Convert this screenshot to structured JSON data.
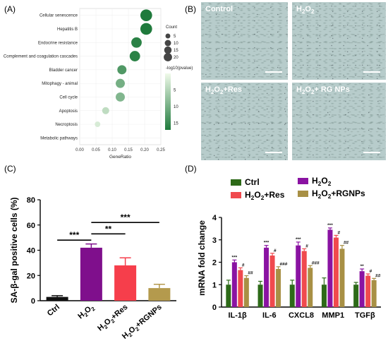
{
  "panels": {
    "a": "(A)",
    "b": "(B)",
    "c": "(C)",
    "d": "(D)"
  },
  "micrographs": [
    {
      "label": "Control"
    },
    {
      "label": "H",
      "sub": "2",
      "tail": "O",
      "sub2": "2",
      "rest": ""
    },
    {
      "label": "H",
      "sub": "2",
      "tail": "O",
      "sub2": "2",
      "rest": "+Res"
    },
    {
      "label": "H",
      "sub": "2",
      "tail": "O",
      "sub2": "2",
      "rest": "+ RG NPs"
    }
  ],
  "chart_data": [
    {
      "type": "scatter",
      "panel": "A",
      "xlabel": "GeneRatio",
      "xlim": [
        0.0,
        0.25
      ],
      "xticks": [
        "0.00",
        "0.05",
        "0.10",
        "0.15",
        "0.20",
        "0.25"
      ],
      "categories": [
        "Cellular senescence",
        "Hepatitis B",
        "Endocrine resistance",
        "Complement and coagulation cascades",
        "Bladder cancer",
        "Mitophagy - animal",
        "Cell cycle",
        "Apoptosis",
        "Necroptosis",
        "Metabolic pathways"
      ],
      "points": [
        {
          "term": "Cellular senescence",
          "gene_ratio": 0.205,
          "count": 22,
          "neglog10p": 17
        },
        {
          "term": "Hepatitis B",
          "gene_ratio": 0.205,
          "count": 22,
          "neglog10p": 17
        },
        {
          "term": "Endocrine resistance",
          "gene_ratio": 0.175,
          "count": 16,
          "neglog10p": 16
        },
        {
          "term": "Complement and coagulation cascades",
          "gene_ratio": 0.17,
          "count": 16,
          "neglog10p": 16
        },
        {
          "term": "Bladder cancer",
          "gene_ratio": 0.13,
          "count": 11,
          "neglog10p": 13
        },
        {
          "term": "Mitophagy - animal",
          "gene_ratio": 0.125,
          "count": 11,
          "neglog10p": 10
        },
        {
          "term": "Cell cycle",
          "gene_ratio": 0.125,
          "count": 11,
          "neglog10p": 9
        },
        {
          "term": "Apoptosis",
          "gene_ratio": 0.08,
          "count": 5,
          "neglog10p": 4
        },
        {
          "term": "Necroptosis",
          "gene_ratio": 0.055,
          "count": 2,
          "neglog10p": 2
        },
        {
          "term": "Metabolic pathways",
          "gene_ratio": null,
          "count": null,
          "neglog10p": null
        }
      ],
      "size_legend": {
        "title": "Count",
        "ticks": [
          5,
          10,
          15,
          20
        ]
      },
      "color_legend": {
        "title": "-log10(pvalue)",
        "ticks": [
          5,
          10,
          15
        ],
        "range": [
          0,
          17
        ],
        "low_color": "#f0faea",
        "high_color": "#1f7a3c"
      }
    },
    {
      "type": "bar",
      "panel": "C",
      "ylabel": "SA-β-gal positive cells (%)",
      "ylim": [
        0,
        80
      ],
      "yticks": [
        0,
        20,
        40,
        60,
        80
      ],
      "categories": [
        {
          "a": "Ctrl",
          "sub": "",
          "b": "",
          "sub2": "",
          "c": ""
        },
        {
          "a": "H",
          "sub": "2",
          "b": "O",
          "sub2": "2",
          "c": ""
        },
        {
          "a": "H",
          "sub": "2",
          "b": "O",
          "sub2": "2",
          "c": "+Res"
        },
        {
          "a": "H",
          "sub": "2",
          "b": "O",
          "sub2": "2",
          "c": "+RGNPs"
        }
      ],
      "values": [
        3,
        42,
        28,
        10
      ],
      "errors": [
        1,
        3,
        6,
        3
      ],
      "colors": [
        "#111111",
        "#7f0f8c",
        "#f63e4b",
        "#b49a4d"
      ],
      "significance": [
        {
          "from": 0,
          "to": 1,
          "y": 48,
          "label": "***"
        },
        {
          "from": 1,
          "to": 2,
          "y": 53,
          "label": "**"
        },
        {
          "from": 1,
          "to": 3,
          "y": 62,
          "label": "***"
        }
      ]
    },
    {
      "type": "bar",
      "panel": "D",
      "ylabel": "mRNA fold change",
      "ylim": [
        0,
        4
      ],
      "yticks": [
        0,
        1,
        2,
        3,
        4
      ],
      "categories": [
        "IL-1β",
        "IL-6",
        "CXCL8",
        "MMP1",
        "TGFβ"
      ],
      "series": [
        {
          "name": "Ctrl",
          "color": "#2d6a18",
          "values": [
            1.0,
            1.0,
            1.0,
            1.0,
            1.0
          ],
          "errors": [
            0.2,
            0.15,
            0.2,
            0.3,
            0.1
          ],
          "marks": [
            "",
            "",
            "",
            "",
            ""
          ]
        },
        {
          "name": "H2O2",
          "color": "#8a13a2",
          "values": [
            2.0,
            2.65,
            2.75,
            3.45,
            1.6
          ],
          "errors": [
            0.1,
            0.1,
            0.15,
            0.08,
            0.1
          ],
          "marks": [
            "***",
            "***",
            "***",
            "***",
            "**"
          ]
        },
        {
          "name": "H2O2+Res",
          "color": "#f04a4e",
          "values": [
            1.65,
            2.3,
            2.5,
            3.1,
            1.4
          ],
          "errors": [
            0.1,
            0.1,
            0.1,
            0.1,
            0.08
          ],
          "marks": [
            "#",
            "#",
            "#",
            "#",
            "#"
          ]
        },
        {
          "name": "H2O2+RGNPs",
          "color": "#a89045",
          "values": [
            1.3,
            1.7,
            1.75,
            2.6,
            1.2
          ],
          "errors": [
            0.1,
            0.1,
            0.1,
            0.15,
            0.08
          ],
          "marks": [
            "##",
            "###",
            "###",
            "##",
            "##"
          ]
        }
      ],
      "legend": [
        {
          "a": "Ctrl",
          "sub": "",
          "b": "",
          "sub2": "",
          "c": ""
        },
        {
          "a": "H",
          "sub": "2",
          "b": "O",
          "sub2": "2",
          "c": ""
        },
        {
          "a": "H",
          "sub": "2",
          "b": "O",
          "sub2": "2",
          "c": "+Res"
        },
        {
          "a": "H",
          "sub": "2",
          "b": "O",
          "sub2": "2",
          "c": "+RGNPs"
        }
      ]
    }
  ]
}
